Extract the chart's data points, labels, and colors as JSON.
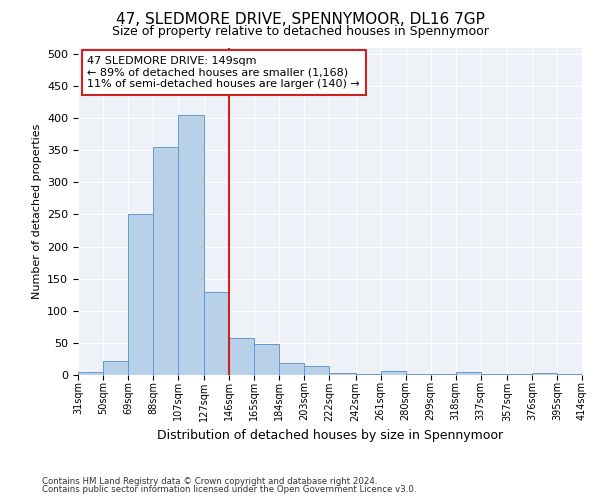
{
  "title": "47, SLEDMORE DRIVE, SPENNYMOOR, DL16 7GP",
  "subtitle": "Size of property relative to detached houses in Spennymoor",
  "xlabel": "Distribution of detached houses by size in Spennymoor",
  "ylabel": "Number of detached properties",
  "footer1": "Contains HM Land Registry data © Crown copyright and database right 2024.",
  "footer2": "Contains public sector information licensed under the Open Government Licence v3.0.",
  "bar_edges": [
    31,
    50,
    69,
    88,
    107,
    127,
    146,
    165,
    184,
    203,
    222,
    242,
    261,
    280,
    299,
    318,
    337,
    357,
    376,
    395,
    414
  ],
  "bar_heights": [
    5,
    22,
    250,
    355,
    405,
    130,
    58,
    48,
    18,
    14,
    3,
    1,
    6,
    2,
    1,
    5,
    1,
    1,
    3,
    1
  ],
  "bar_color": "#b8d0e8",
  "bar_edge_color": "#6699cc",
  "vline_x": 146,
  "vline_color": "#cc2222",
  "annotation_line1": "47 SLEDMORE DRIVE: 149sqm",
  "annotation_line2": "← 89% of detached houses are smaller (1,168)",
  "annotation_line3": "11% of semi-detached houses are larger (140) →",
  "annotation_box_color": "#ffffff",
  "annotation_box_edgecolor": "#cc2222",
  "ylim": [
    0,
    510
  ],
  "yticks": [
    0,
    50,
    100,
    150,
    200,
    250,
    300,
    350,
    400,
    450,
    500
  ],
  "background_color": "#eef2f8",
  "grid_color": "#ffffff",
  "tick_labels": [
    "31sqm",
    "50sqm",
    "69sqm",
    "88sqm",
    "107sqm",
    "127sqm",
    "146sqm",
    "165sqm",
    "184sqm",
    "203sqm",
    "222sqm",
    "242sqm",
    "261sqm",
    "280sqm",
    "299sqm",
    "318sqm",
    "337sqm",
    "357sqm",
    "376sqm",
    "395sqm",
    "414sqm"
  ]
}
